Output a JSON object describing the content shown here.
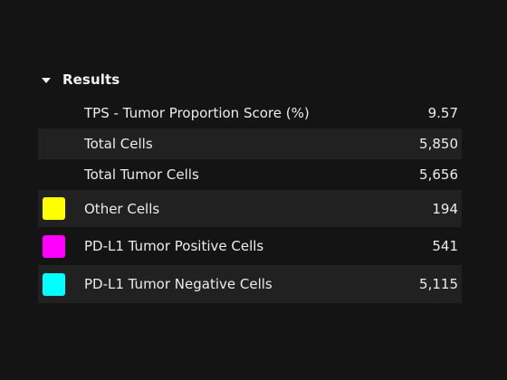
{
  "results_section": {
    "title": "Results",
    "rows": [
      {
        "label": "TPS - Tumor Proportion Score (%)",
        "value": "9.57",
        "swatch": null
      },
      {
        "label": "Total Cells",
        "value": "5,850",
        "swatch": null
      },
      {
        "label": "Total Tumor Cells",
        "value": "5,656",
        "swatch": null
      },
      {
        "label": "Other Cells",
        "value": "194",
        "swatch": "#ffff00"
      },
      {
        "label": "PD-L1 Tumor Positive Cells",
        "value": "541",
        "swatch": "#ff00ff"
      },
      {
        "label": "PD-L1 Tumor Negative Cells",
        "value": "5,115",
        "swatch": "#00ffff"
      }
    ]
  }
}
